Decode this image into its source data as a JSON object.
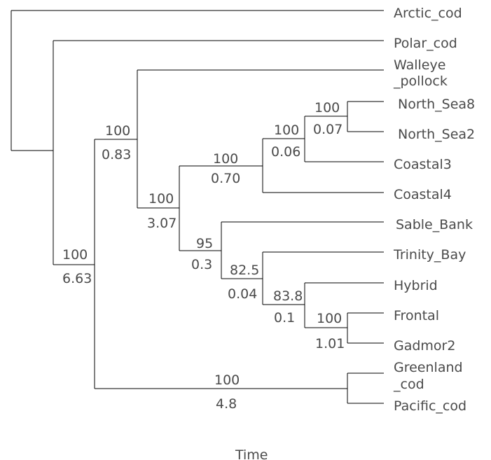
{
  "tree": {
    "x_axis_label": "Time",
    "leaves": {
      "arctic_cod": "Arctic_cod",
      "polar_cod": "Polar_cod",
      "walleye_pollock": [
        "Walleye",
        "_pollock"
      ],
      "north_sea8": "North_Sea8",
      "north_sea2": "North_Sea2",
      "coastal3": "Coastal3",
      "coastal4": "Coastal4",
      "sable_bank": "Sable_Bank",
      "trinity_bay": "Trinity_Bay",
      "hybrid": "Hybrid",
      "frontal": "Frontal",
      "gadmor2": "Gadmor2",
      "greenland_cod": [
        "Greenland",
        "_cod"
      ],
      "pacific_cod": "Pacific_cod"
    },
    "nodes": {
      "n_ns": {
        "support": "100",
        "length": "0.07"
      },
      "n_ns_c3": {
        "support": "100",
        "length": "0.06"
      },
      "n_coastal": {
        "support": "100",
        "length": "0.70"
      },
      "n_atlantic": {
        "support": "100",
        "length": "3.07"
      },
      "n_west": {
        "support": "95",
        "length": "0.3"
      },
      "n_trinity": {
        "support": "82.5",
        "length": "0.04"
      },
      "n_hybrid": {
        "support": "83.8",
        "length": "0.1"
      },
      "n_frontal": {
        "support": "100",
        "length": "1.01"
      },
      "n_walleye": {
        "support": "100",
        "length": "0.83"
      },
      "n_gadus": {
        "support": "100",
        "length": "6.63"
      },
      "n_greenland": {
        "support": "100",
        "length": "4.8"
      }
    }
  }
}
